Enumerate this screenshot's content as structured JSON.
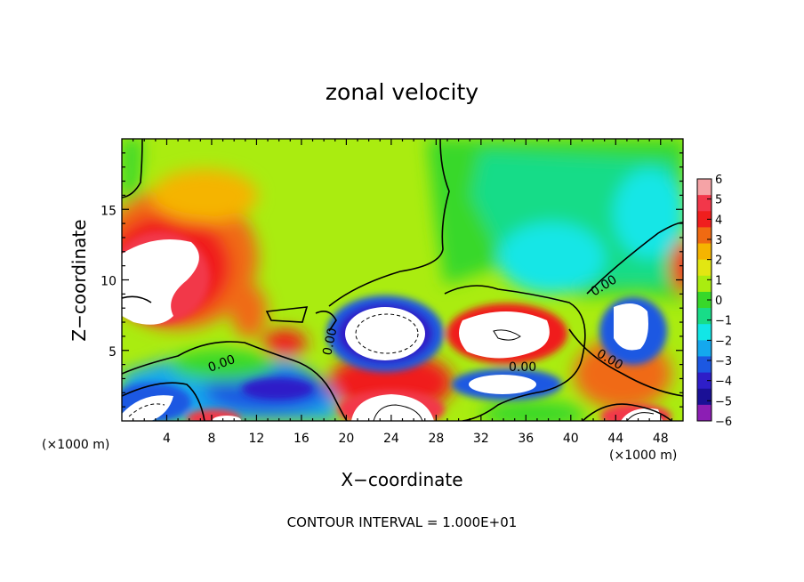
{
  "chart_data": {
    "type": "heatmap",
    "title": "zonal velocity",
    "xlabel": "X−coordinate",
    "ylabel": "Z−coordinate",
    "x_unit": "(×1000 m)",
    "y_unit": "(×1000 m)",
    "xlim": [
      0,
      50
    ],
    "ylim": [
      0,
      20
    ],
    "x_ticks": [
      "4",
      "8",
      "12",
      "16",
      "20",
      "24",
      "28",
      "32",
      "36",
      "40",
      "44",
      "48"
    ],
    "y_ticks": [
      "5",
      "10",
      "15"
    ],
    "colorbar": {
      "labels": [
        "6",
        "5",
        "4",
        "3",
        "2",
        "1",
        "0",
        "−1",
        "−2",
        "−3",
        "−4",
        "−5",
        "−6"
      ],
      "colors": [
        "#f5a3a6",
        "#f2374a",
        "#f01e1e",
        "#f06a12",
        "#f5b400",
        "#e2e612",
        "#aaec10",
        "#38d82a",
        "#18dc88",
        "#12e6e6",
        "#14a8ee",
        "#1c58e2",
        "#2e1ec8",
        "#1a1096",
        "#8c1eb4"
      ]
    },
    "contour_labels": [
      "0.00",
      "0.00",
      "0.00",
      "0.00",
      "0.00"
    ],
    "footer": "CONTOUR INTERVAL = 1.000E+01"
  }
}
